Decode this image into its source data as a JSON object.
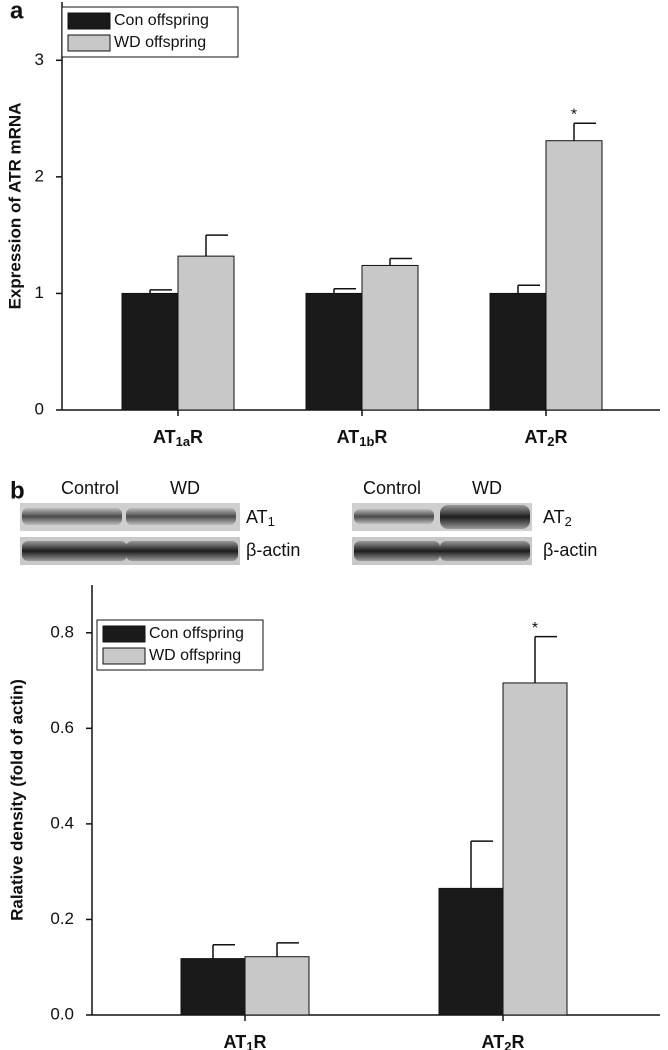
{
  "chart_data": [
    {
      "type": "bar",
      "panel": "a",
      "y_label": "Expression of ATR mRNA",
      "categories": [
        "AT1aR",
        "AT1bR",
        "AT2R"
      ],
      "series": [
        {
          "name": "Con offspring",
          "color": "#1a1a1a",
          "values": [
            1.0,
            1.0,
            1.0
          ],
          "errors": [
            0.03,
            0.04,
            0.07
          ],
          "significance": [
            null,
            null,
            null
          ]
        },
        {
          "name": "WD offspring",
          "color": "#c8c8c8",
          "values": [
            1.32,
            1.24,
            2.31
          ],
          "errors": [
            0.18,
            0.06,
            0.15
          ],
          "significance": [
            null,
            null,
            "*"
          ]
        }
      ],
      "ylim": [
        0,
        3.5
      ],
      "yticks": [
        0,
        1,
        2,
        3
      ],
      "legend": "upper left"
    },
    {
      "type": "bar",
      "panel": "b",
      "y_label": "Ralative density (fold of actin)",
      "categories": [
        "AT1R",
        "AT2R"
      ],
      "series": [
        {
          "name": "Con offspring",
          "color": "#1a1a1a",
          "values": [
            0.118,
            0.265
          ],
          "errors": [
            0.029,
            0.099
          ],
          "significance": [
            null,
            null
          ]
        },
        {
          "name": "WD offspring",
          "color": "#c8c8c8",
          "values": [
            0.122,
            0.695
          ],
          "errors": [
            0.029,
            0.097
          ],
          "significance": [
            null,
            "*"
          ]
        }
      ],
      "ylim": [
        0,
        0.9
      ],
      "yticks": [
        {
          "value": 0,
          "label": "0.0"
        },
        0.2,
        0.4,
        0.6,
        0.8
      ],
      "legend": "upper left"
    }
  ],
  "blots": [
    {
      "columns": [
        "Control",
        "WD"
      ],
      "rows": [
        "AT1",
        "β-actin"
      ]
    },
    {
      "columns": [
        "Control",
        "WD"
      ],
      "rows": [
        "AT2",
        "β-actin"
      ]
    }
  ]
}
